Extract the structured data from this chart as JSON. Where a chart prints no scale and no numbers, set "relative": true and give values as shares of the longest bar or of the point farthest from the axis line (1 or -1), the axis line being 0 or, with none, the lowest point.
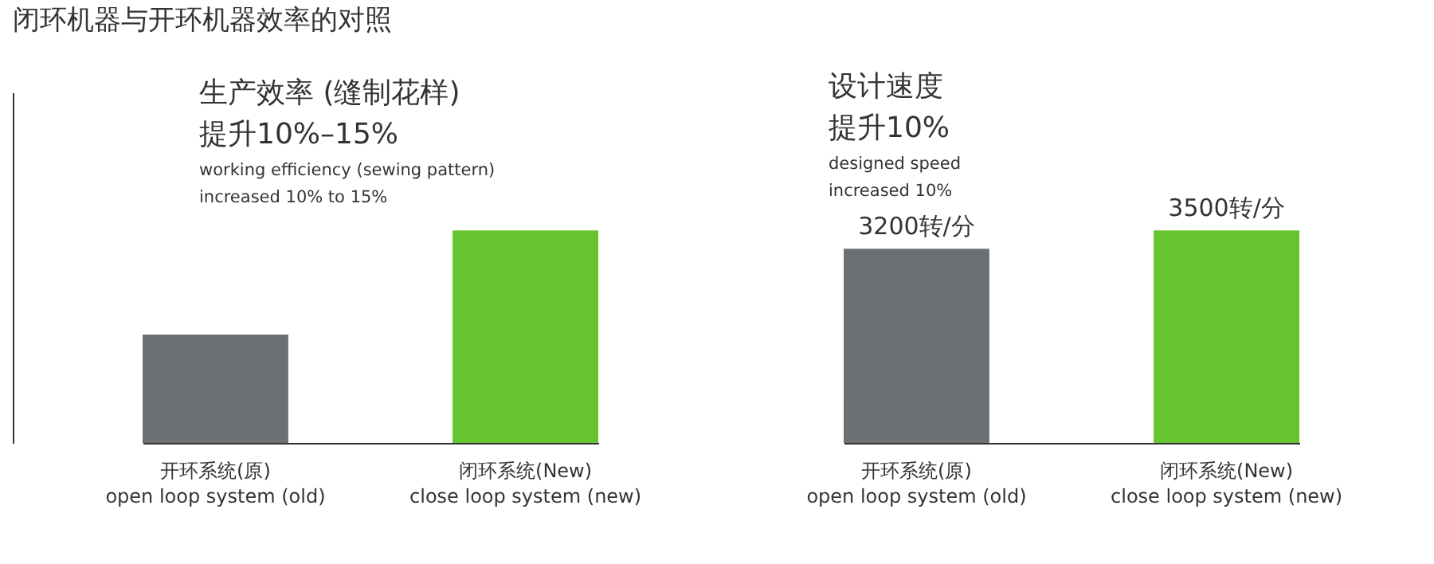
{
  "chart_data": [
    {
      "type": "bar",
      "title": "闭环机器与开环机器效率的对照",
      "relative": true,
      "categories": [
        "开环系统(原)\nopen loop system (old)",
        "闭环系统(New)\nclose loop system (new)"
      ],
      "values": [
        0.51,
        1
      ],
      "colors": [
        "#6d7073",
        "#66c431"
      ],
      "annotations": [
        "生产效率 (缝制花样)",
        "提升10%–15%",
        "working efficiency (sewing pattern)\nincreased 10% to 15%"
      ],
      "tick_labels": "x",
      "grid": false
    },
    {
      "type": "bar",
      "categories": [
        "开环系统(原)\nopen loop system (old)",
        "闭环系统(New)\nclose loop system (new)"
      ],
      "values": [
        3200,
        3500
      ],
      "colors": [
        "#6d7073",
        "#66c431"
      ],
      "value_labels": [
        "3200转/分",
        "3500转/分"
      ],
      "annotations": [
        "设计速度",
        "提升10%",
        "designed speed\nincreased 10%"
      ],
      "tick_labels": "x",
      "grid": false
    }
  ]
}
